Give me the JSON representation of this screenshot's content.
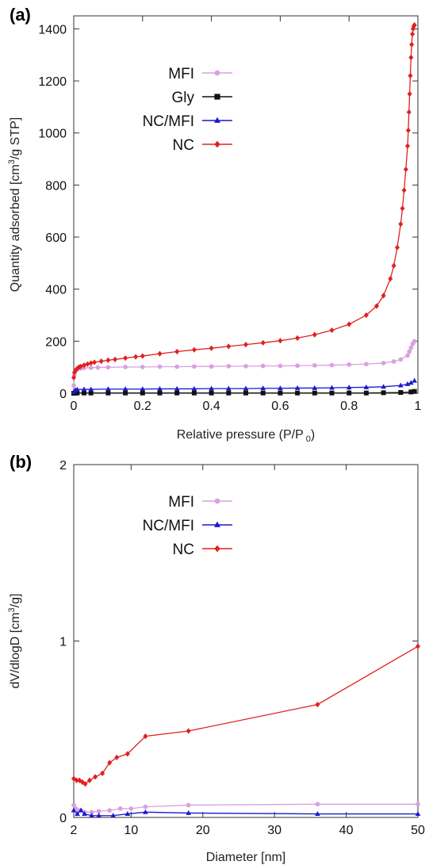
{
  "panels": {
    "a_label": "(a)",
    "b_label": "(b)"
  },
  "chart_data": [
    {
      "type": "line",
      "panel": "(a)",
      "xlabel": "Relative pressure (P/P",
      "xlabel_sub": "0",
      "xlabel_suffix": ")",
      "ylabel": "Quantity adsorbed [cm",
      "ylabel_sup": "3",
      "ylabel_suffix": "/g STP]",
      "xlim": [
        0,
        1
      ],
      "ylim": [
        0,
        1450
      ],
      "xticks": [
        0,
        0.2,
        0.4,
        0.6,
        0.8,
        1
      ],
      "xtick_labels": [
        "0",
        "0.2",
        "0.4",
        "0.6",
        "0.8",
        "1"
      ],
      "yticks": [
        0,
        200,
        400,
        600,
        800,
        1000,
        1200,
        1400
      ],
      "ytick_labels": [
        "0",
        "200",
        "400",
        "600",
        "800",
        "1000",
        "1200",
        "1400"
      ],
      "legend_position": "top-left",
      "series": [
        {
          "name": "MFI",
          "color": "#d9a0e0",
          "marker": "circle",
          "x": [
            0.0,
            0.002,
            0.005,
            0.01,
            0.02,
            0.03,
            0.05,
            0.07,
            0.1,
            0.15,
            0.2,
            0.25,
            0.3,
            0.35,
            0.4,
            0.45,
            0.5,
            0.55,
            0.6,
            0.65,
            0.7,
            0.75,
            0.8,
            0.85,
            0.9,
            0.93,
            0.95,
            0.97,
            0.975,
            0.98,
            0.985,
            0.99
          ],
          "y": [
            30,
            70,
            85,
            92,
            95,
            97,
            98,
            99,
            100,
            101,
            101,
            102,
            102,
            103,
            103,
            104,
            104,
            105,
            105,
            106,
            107,
            108,
            110,
            112,
            116,
            122,
            130,
            145,
            160,
            175,
            190,
            200
          ]
        },
        {
          "name": "Gly",
          "color": "#111111",
          "marker": "square",
          "x": [
            0.0,
            0.005,
            0.01,
            0.03,
            0.05,
            0.1,
            0.15,
            0.2,
            0.25,
            0.3,
            0.35,
            0.4,
            0.45,
            0.5,
            0.55,
            0.6,
            0.65,
            0.7,
            0.75,
            0.8,
            0.85,
            0.9,
            0.95,
            0.98,
            0.99
          ],
          "y": [
            0,
            1,
            1,
            1,
            1,
            1,
            1,
            1,
            1,
            1,
            1,
            1,
            1,
            1,
            1,
            1,
            1,
            1,
            1,
            1,
            1,
            2,
            3,
            5,
            7
          ]
        },
        {
          "name": "NC/MFI",
          "color": "#1a1acc",
          "marker": "triangle",
          "x": [
            0.0,
            0.005,
            0.01,
            0.03,
            0.05,
            0.1,
            0.15,
            0.2,
            0.25,
            0.3,
            0.35,
            0.4,
            0.45,
            0.5,
            0.55,
            0.6,
            0.65,
            0.7,
            0.75,
            0.8,
            0.85,
            0.9,
            0.95,
            0.97,
            0.98,
            0.99
          ],
          "y": [
            5,
            12,
            14,
            15,
            15,
            16,
            16,
            16,
            17,
            17,
            17,
            18,
            18,
            18,
            19,
            19,
            20,
            20,
            21,
            22,
            23,
            25,
            30,
            35,
            40,
            48
          ]
        },
        {
          "name": "NC",
          "color": "#e02020",
          "marker": "diamond",
          "x": [
            0.0,
            0.002,
            0.005,
            0.01,
            0.015,
            0.02,
            0.03,
            0.04,
            0.05,
            0.06,
            0.08,
            0.1,
            0.12,
            0.15,
            0.18,
            0.2,
            0.25,
            0.3,
            0.35,
            0.4,
            0.45,
            0.5,
            0.55,
            0.6,
            0.65,
            0.7,
            0.75,
            0.8,
            0.85,
            0.88,
            0.9,
            0.92,
            0.93,
            0.94,
            0.95,
            0.955,
            0.96,
            0.965,
            0.97,
            0.972,
            0.974,
            0.976,
            0.978,
            0.98,
            0.982,
            0.984,
            0.986,
            0.988,
            0.99
          ],
          "y": [
            60,
            80,
            88,
            95,
            100,
            103,
            108,
            112,
            116,
            119,
            123,
            127,
            130,
            135,
            140,
            143,
            152,
            160,
            167,
            173,
            180,
            187,
            194,
            202,
            212,
            225,
            242,
            265,
            300,
            335,
            375,
            440,
            490,
            560,
            650,
            710,
            780,
            860,
            950,
            1010,
            1080,
            1150,
            1220,
            1290,
            1340,
            1380,
            1400,
            1410,
            1415
          ]
        }
      ]
    },
    {
      "type": "line",
      "panel": "(b)",
      "xlabel": "Diameter [nm]",
      "ylabel": "dV/dlogD [cm",
      "ylabel_sup": "3",
      "ylabel_suffix": "/g]",
      "xlim": [
        2,
        50
      ],
      "ylim": [
        0,
        2
      ],
      "xticks": [
        2,
        10,
        20,
        30,
        40,
        50
      ],
      "xtick_labels": [
        "2",
        "10",
        "20",
        "30",
        "40",
        "50"
      ],
      "yticks": [
        0,
        1,
        2
      ],
      "ytick_labels": [
        "0",
        "1",
        "2"
      ],
      "legend_position": "top-left",
      "series": [
        {
          "name": "MFI",
          "color": "#d9a0e0",
          "marker": "circle",
          "x": [
            2.0,
            2.3,
            2.6,
            3.0,
            3.5,
            4.5,
            5.5,
            7.0,
            8.5,
            10.0,
            12.0,
            18.0,
            36.0,
            50.0
          ],
          "y": [
            0.07,
            0.05,
            0.04,
            0.04,
            0.03,
            0.03,
            0.035,
            0.04,
            0.05,
            0.05,
            0.06,
            0.07,
            0.075,
            0.075
          ]
        },
        {
          "name": "NC/MFI",
          "color": "#1a1acc",
          "marker": "triangle",
          "x": [
            2.0,
            2.5,
            3.0,
            3.5,
            4.5,
            5.5,
            7.5,
            9.5,
            12.0,
            18.0,
            36.0,
            50.0
          ],
          "y": [
            0.04,
            0.02,
            0.04,
            0.02,
            0.01,
            0.01,
            0.01,
            0.02,
            0.03,
            0.025,
            0.02,
            0.02
          ]
        },
        {
          "name": "NC",
          "color": "#e02020",
          "marker": "diamond",
          "x": [
            2.0,
            2.4,
            2.8,
            3.2,
            3.6,
            4.2,
            5.0,
            6.0,
            7.0,
            8.0,
            9.5,
            12.0,
            18.0,
            36.0,
            50.0
          ],
          "y": [
            0.22,
            0.21,
            0.21,
            0.2,
            0.19,
            0.21,
            0.23,
            0.25,
            0.31,
            0.34,
            0.36,
            0.46,
            0.49,
            0.64,
            0.97
          ]
        }
      ]
    }
  ]
}
